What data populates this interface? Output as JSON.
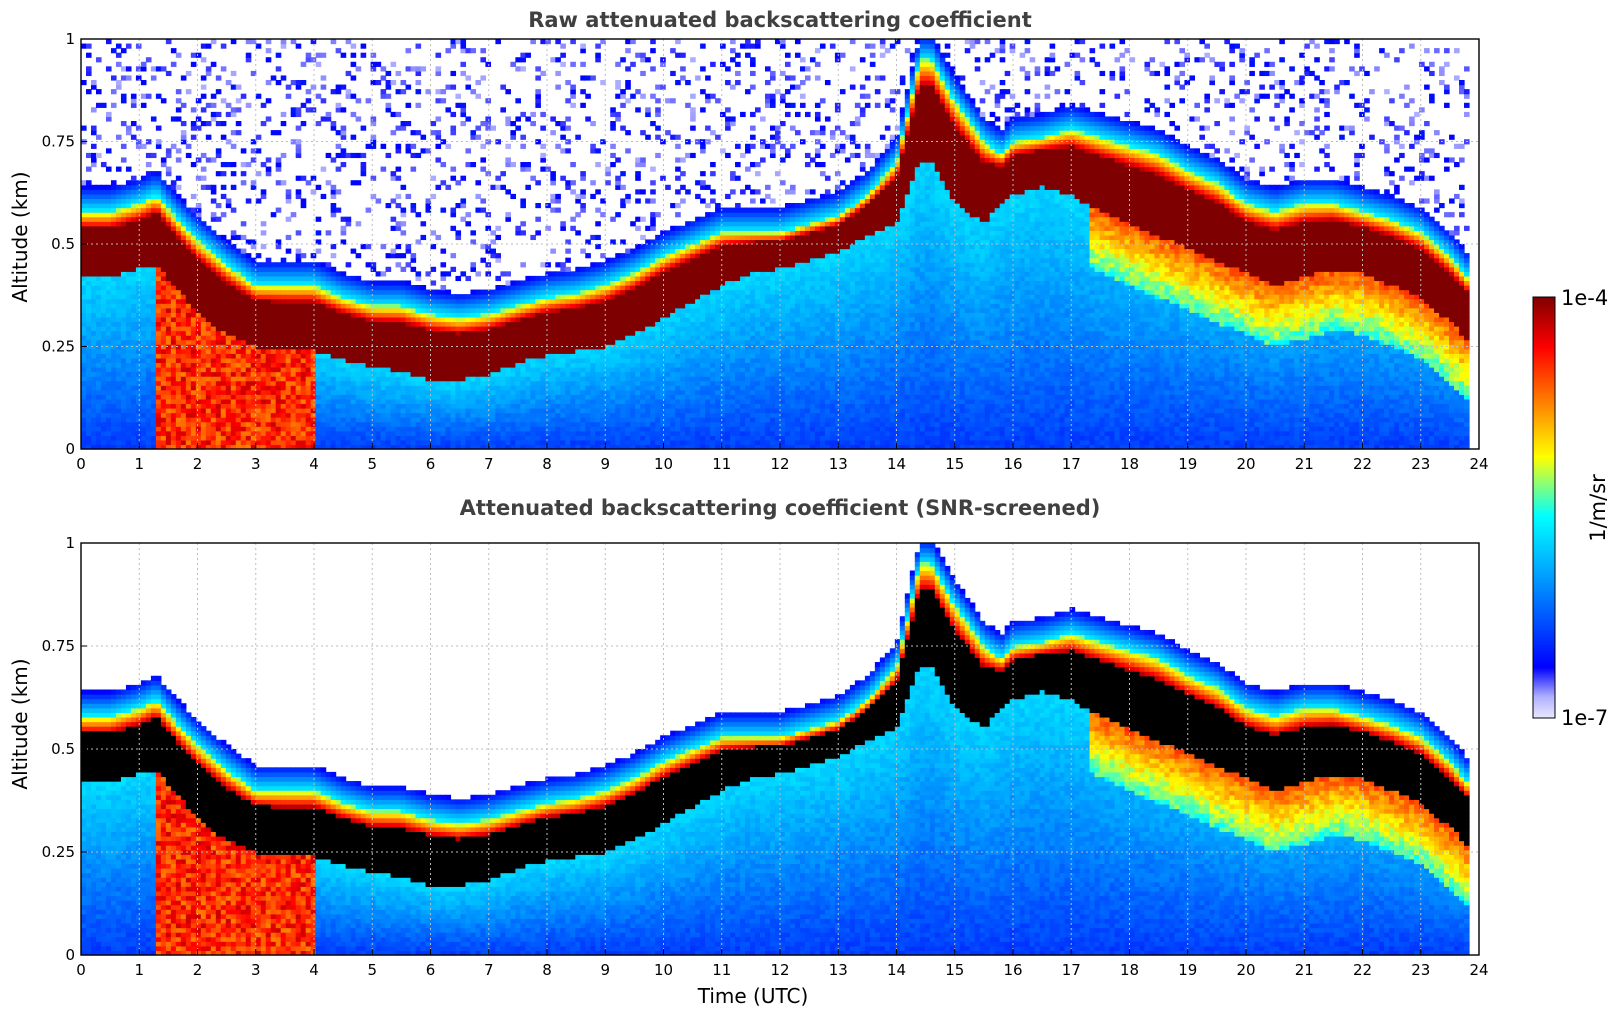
{
  "chart_data": [
    {
      "type": "heatmap",
      "title": "Raw attenuated backscattering coefficient",
      "xlabel": "",
      "ylabel": "Altitude (km)",
      "xlim": [
        0,
        24
      ],
      "ylim": [
        0,
        1
      ],
      "xticks": [
        "0",
        "1",
        "2",
        "3",
        "4",
        "5",
        "6",
        "7",
        "8",
        "9",
        "10",
        "11",
        "12",
        "13",
        "14",
        "15",
        "16",
        "17",
        "18",
        "19",
        "20",
        "21",
        "22",
        "23",
        "24"
      ],
      "yticks": [
        "0",
        "0.25",
        "0.5",
        "0.75",
        "1"
      ],
      "grid": true,
      "colorscale": "jet",
      "data_end_hour": 23.8,
      "saturated_color": "#7f0000",
      "layer": {
        "time_utc": [
          0,
          0.5,
          1.0,
          1.3,
          1.6,
          2.0,
          2.5,
          3.0,
          3.5,
          4.0,
          4.5,
          5.0,
          5.5,
          6.0,
          6.5,
          7.0,
          7.5,
          8.0,
          8.5,
          9.0,
          9.5,
          10.0,
          10.5,
          11.0,
          11.5,
          12.0,
          12.5,
          13.0,
          13.5,
          14.0,
          14.4,
          14.6,
          15.0,
          15.5,
          15.8,
          16.0,
          16.5,
          17.0,
          17.5,
          18.0,
          18.5,
          19.0,
          19.5,
          20.0,
          20.5,
          21.0,
          21.5,
          22.0,
          22.5,
          23.0,
          23.5,
          23.8
        ],
        "top_km": [
          0.58,
          0.58,
          0.6,
          0.62,
          0.57,
          0.51,
          0.45,
          0.4,
          0.4,
          0.4,
          0.37,
          0.35,
          0.35,
          0.33,
          0.32,
          0.33,
          0.35,
          0.37,
          0.38,
          0.4,
          0.43,
          0.47,
          0.5,
          0.53,
          0.53,
          0.53,
          0.55,
          0.57,
          0.62,
          0.7,
          0.95,
          0.95,
          0.85,
          0.75,
          0.72,
          0.75,
          0.76,
          0.78,
          0.76,
          0.74,
          0.72,
          0.68,
          0.65,
          0.6,
          0.58,
          0.6,
          0.6,
          0.58,
          0.56,
          0.53,
          0.47,
          0.42
        ],
        "bottom_km": [
          0.42,
          0.42,
          0.44,
          0.45,
          0.4,
          0.33,
          0.28,
          0.25,
          0.24,
          0.24,
          0.22,
          0.2,
          0.19,
          0.17,
          0.17,
          0.18,
          0.21,
          0.23,
          0.24,
          0.25,
          0.28,
          0.32,
          0.36,
          0.4,
          0.43,
          0.44,
          0.46,
          0.48,
          0.52,
          0.55,
          0.7,
          0.7,
          0.6,
          0.55,
          0.6,
          0.62,
          0.64,
          0.62,
          0.58,
          0.55,
          0.52,
          0.49,
          0.46,
          0.43,
          0.4,
          0.42,
          0.44,
          0.43,
          0.4,
          0.37,
          0.31,
          0.27
        ]
      }
    },
    {
      "type": "heatmap",
      "title": "Attenuated backscattering coefficient (SNR-screened)",
      "xlabel": "Time (UTC)",
      "ylabel": "Altitude (km)",
      "xlim": [
        0,
        24
      ],
      "ylim": [
        0,
        1
      ],
      "xticks": [
        "0",
        "1",
        "2",
        "3",
        "4",
        "5",
        "6",
        "7",
        "8",
        "9",
        "10",
        "11",
        "12",
        "13",
        "14",
        "15",
        "16",
        "17",
        "18",
        "19",
        "20",
        "21",
        "22",
        "23",
        "24"
      ],
      "yticks": [
        "0",
        "0.25",
        "0.5",
        "0.75",
        "1"
      ],
      "grid": true,
      "colorscale": "jet",
      "data_end_hour": 23.8,
      "saturated_color": "#000000",
      "layer": {
        "time_utc": [
          0,
          0.5,
          1.0,
          1.3,
          1.6,
          2.0,
          2.5,
          3.0,
          3.5,
          4.0,
          4.5,
          5.0,
          5.5,
          6.0,
          6.5,
          7.0,
          7.5,
          8.0,
          8.5,
          9.0,
          9.5,
          10.0,
          10.5,
          11.0,
          11.5,
          12.0,
          12.5,
          13.0,
          13.5,
          14.0,
          14.4,
          14.6,
          15.0,
          15.5,
          15.8,
          16.0,
          16.5,
          17.0,
          17.5,
          18.0,
          18.5,
          19.0,
          19.5,
          20.0,
          20.5,
          21.0,
          21.5,
          22.0,
          22.5,
          23.0,
          23.5,
          23.8
        ],
        "top_km": [
          0.58,
          0.58,
          0.6,
          0.62,
          0.57,
          0.51,
          0.45,
          0.4,
          0.4,
          0.4,
          0.37,
          0.35,
          0.35,
          0.33,
          0.32,
          0.33,
          0.35,
          0.37,
          0.38,
          0.4,
          0.43,
          0.47,
          0.5,
          0.53,
          0.53,
          0.53,
          0.55,
          0.57,
          0.62,
          0.7,
          0.95,
          0.95,
          0.85,
          0.75,
          0.72,
          0.75,
          0.76,
          0.78,
          0.76,
          0.74,
          0.72,
          0.68,
          0.65,
          0.6,
          0.58,
          0.6,
          0.6,
          0.58,
          0.56,
          0.53,
          0.47,
          0.42
        ],
        "bottom_km": [
          0.42,
          0.42,
          0.44,
          0.45,
          0.4,
          0.33,
          0.28,
          0.25,
          0.24,
          0.24,
          0.22,
          0.2,
          0.19,
          0.17,
          0.17,
          0.18,
          0.21,
          0.23,
          0.24,
          0.25,
          0.28,
          0.32,
          0.36,
          0.4,
          0.43,
          0.44,
          0.46,
          0.48,
          0.52,
          0.55,
          0.7,
          0.7,
          0.6,
          0.55,
          0.6,
          0.62,
          0.64,
          0.62,
          0.58,
          0.55,
          0.52,
          0.49,
          0.46,
          0.43,
          0.4,
          0.42,
          0.44,
          0.43,
          0.4,
          0.37,
          0.31,
          0.27
        ]
      }
    }
  ],
  "colorbar": {
    "label": "1/m/sr",
    "max_label": "1e-4",
    "min_label": "1e-7",
    "scale": "log",
    "range": [
      1e-07,
      0.0001
    ]
  }
}
